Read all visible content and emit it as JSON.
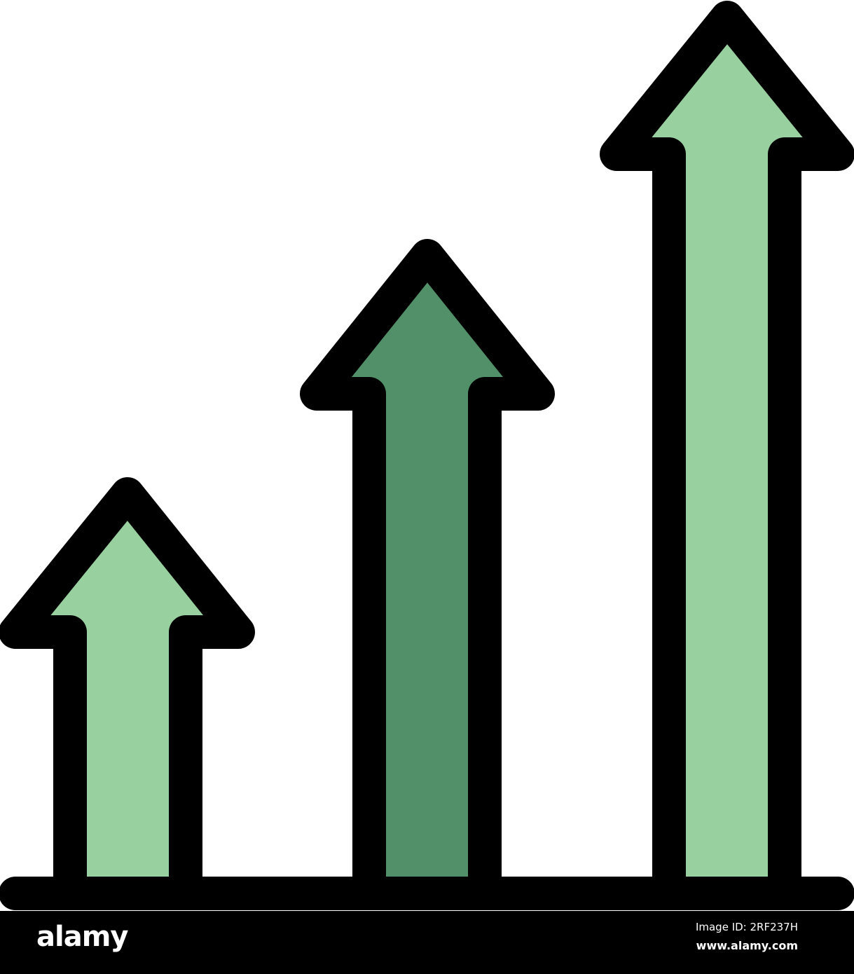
{
  "icon": {
    "name": "growth-arrows-icon",
    "colors": {
      "outline": "#000000",
      "light_green": "#99d0a0",
      "dark_green": "#52906a"
    },
    "arrows": [
      {
        "name": "short-arrow",
        "fill": "light_green"
      },
      {
        "name": "medium-arrow",
        "fill": "dark_green"
      },
      {
        "name": "tall-arrow",
        "fill": "light_green"
      }
    ]
  },
  "watermark": {
    "logo": "alamy",
    "image_id": "Image ID: 2RF237H",
    "site": "www.alamy.com"
  }
}
